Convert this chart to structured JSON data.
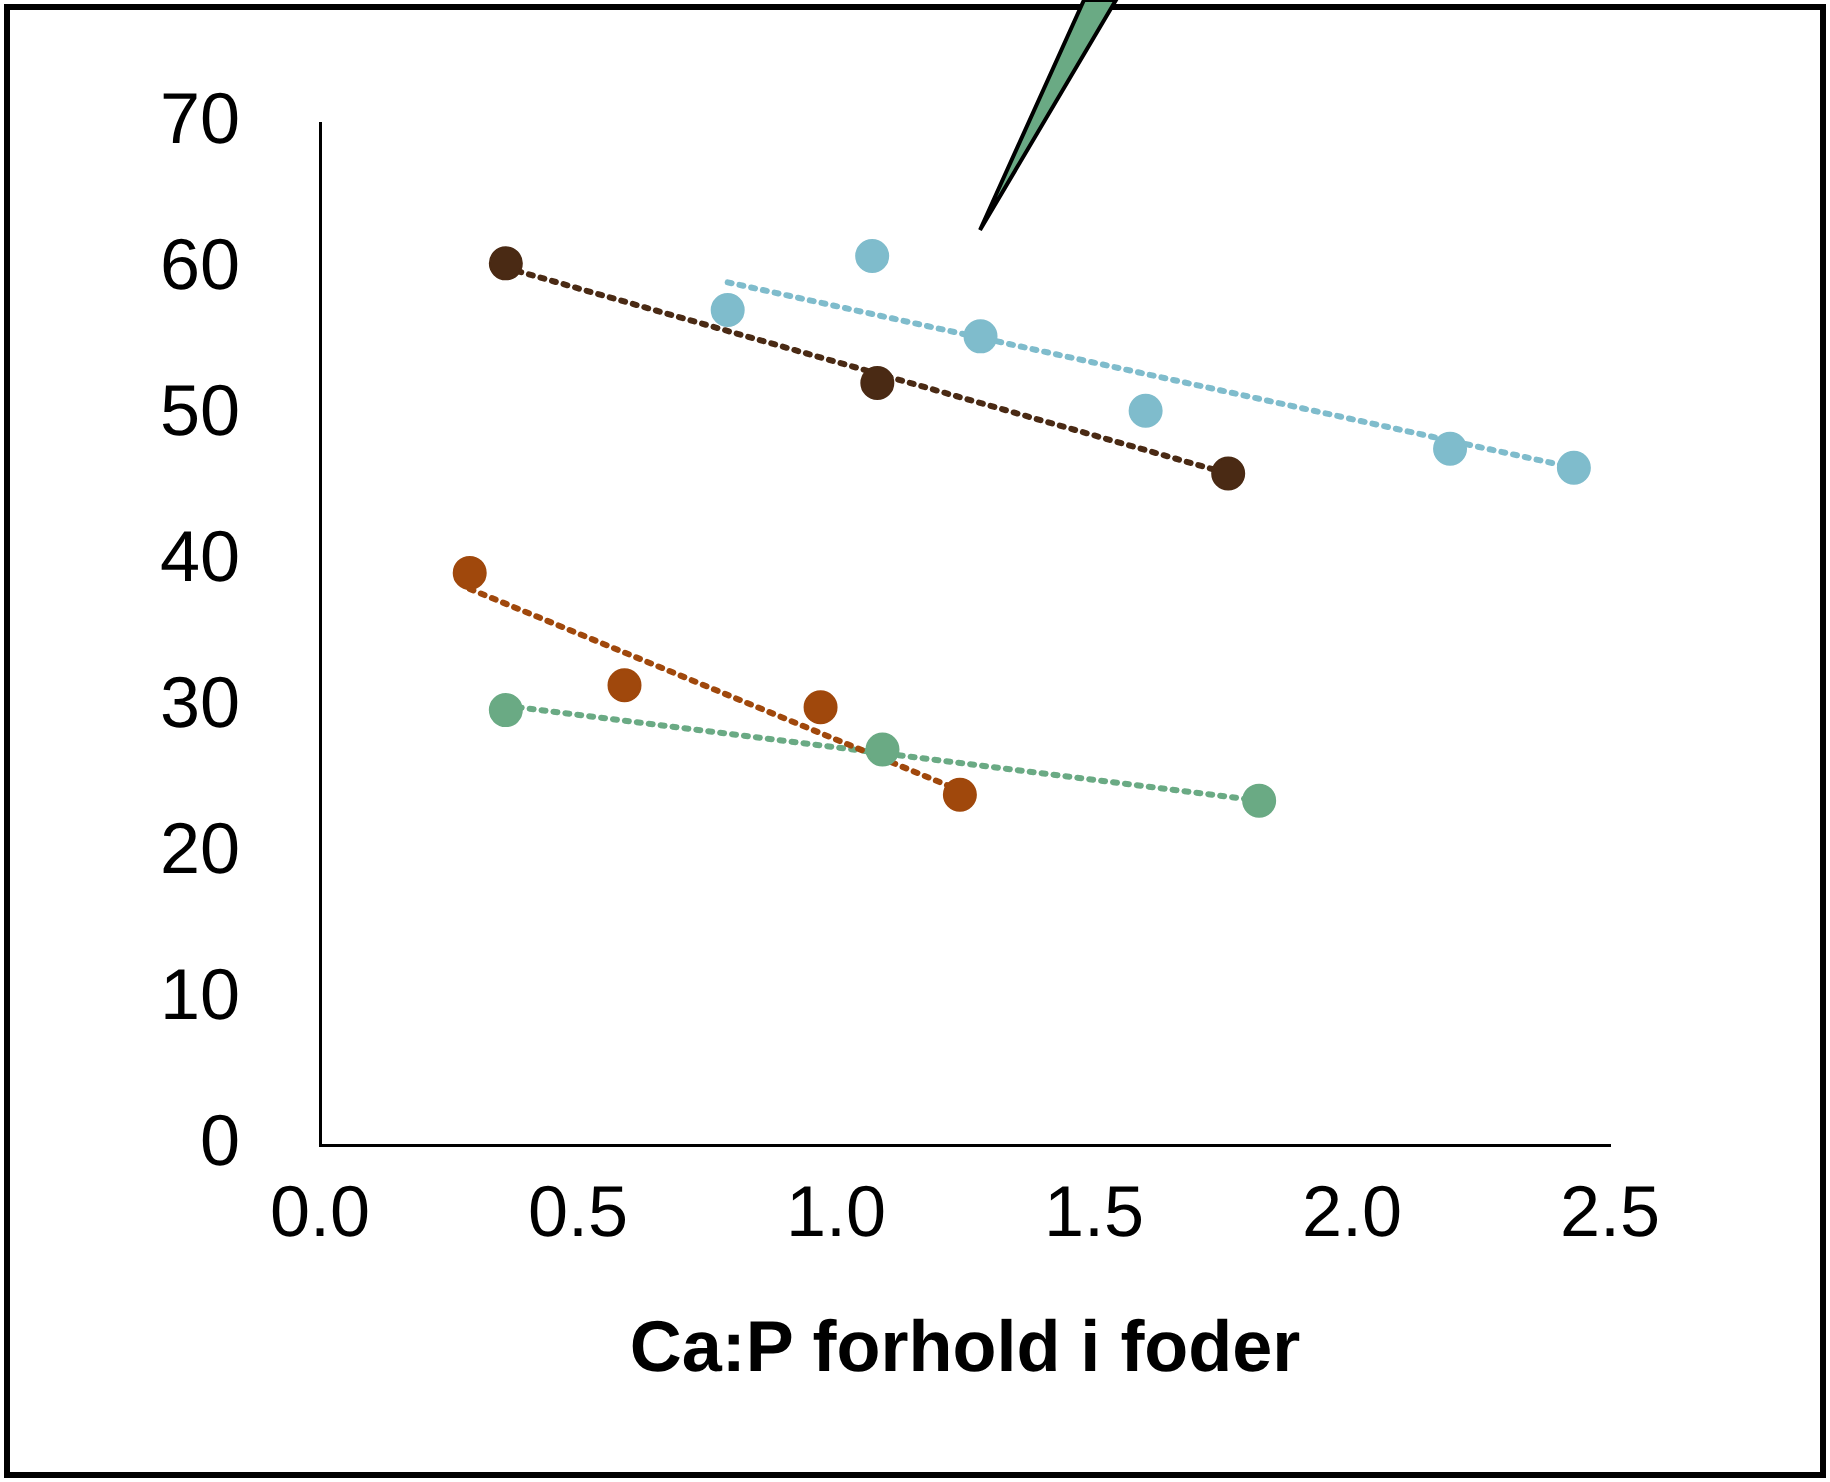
{
  "chart_data": {
    "type": "scatter",
    "xlabel": "Ca:P forhold i foder",
    "xlim": [
      0,
      2.5
    ],
    "xticks": [
      {
        "value": 0,
        "label": "0.0"
      },
      {
        "value": 0.5,
        "label": "0.5"
      },
      {
        "value": 1,
        "label": "1.0"
      },
      {
        "value": 1.5,
        "label": "1.5"
      },
      {
        "value": 2,
        "label": "2.0"
      },
      {
        "value": 2.5,
        "label": "2.5"
      }
    ],
    "ylim": [
      0,
      70
    ],
    "yticks": [
      0,
      10,
      20,
      30,
      40,
      50,
      60,
      70
    ],
    "grid": false,
    "legend": false,
    "marker": "circle",
    "series": [
      {
        "type": "scatter",
        "color": "#4a2a14",
        "x": [
          0.36,
          1.08,
          1.76
        ],
        "values": [
          60.4,
          52.2,
          46.0
        ]
      },
      {
        "type": "scatter",
        "color": "#7fbccc",
        "x": [
          0.79,
          1.07,
          1.28,
          1.6,
          2.19,
          2.43
        ],
        "values": [
          57.2,
          60.9,
          55.4,
          50.3,
          47.7,
          46.4
        ]
      },
      {
        "type": "scatter",
        "color": "#a0480c",
        "x": [
          0.29,
          0.59,
          0.97,
          1.24
        ],
        "values": [
          39.2,
          31.5,
          30.0,
          24.0
        ]
      },
      {
        "type": "scatter",
        "color": "#6aaa84",
        "x": [
          0.36,
          1.09,
          1.82
        ],
        "values": [
          29.8,
          27.1,
          23.6
        ]
      },
      {
        "type": "line",
        "color": "#4a2a14",
        "marker": "none",
        "line_style": "dotted",
        "x": [
          0.36,
          1.76
        ],
        "values": [
          60.1,
          46.0
        ]
      },
      {
        "type": "line",
        "color": "#7fbccc",
        "marker": "none",
        "line_style": "dotted",
        "x": [
          0.79,
          2.43
        ],
        "values": [
          59.1,
          46.4
        ]
      },
      {
        "type": "line",
        "color": "#a0480c",
        "marker": "none",
        "line_style": "dotted",
        "x": [
          0.29,
          1.24
        ],
        "values": [
          38.1,
          24.3
        ]
      },
      {
        "type": "line",
        "color": "#6aaa84",
        "marker": "none",
        "line_style": "dotted",
        "x": [
          0.36,
          1.82
        ],
        "values": [
          30.1,
          23.6
        ]
      }
    ]
  }
}
